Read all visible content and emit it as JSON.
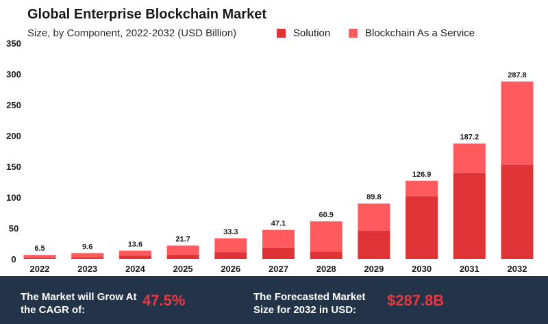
{
  "colors": {
    "solution": "#e03336",
    "baas": "#ff5a5e",
    "footer_bg": "#233348",
    "highlight": "#e8383f"
  },
  "chart_data": {
    "type": "bar",
    "stacked": true,
    "title": "Global Enterprise Blockchain Market",
    "subtitle": "Size, by Component, 2022-2032 (USD Billion)",
    "categories": [
      "2022",
      "2023",
      "2024",
      "2025",
      "2026",
      "2027",
      "2028",
      "2029",
      "2030",
      "2031",
      "2032"
    ],
    "series": [
      {
        "name": "Solution",
        "values": [
          2,
          3,
          5,
          7,
          11,
          18,
          12,
          46,
          102,
          139,
          153
        ]
      },
      {
        "name": "Blockchain As a Service",
        "values": [
          4.5,
          6.6,
          8.6,
          14.7,
          22.3,
          29.1,
          48.9,
          43.8,
          24.9,
          48.2,
          134.8
        ]
      }
    ],
    "totals": [
      "6.5",
      "9.6",
      "13.6",
      "21.7",
      "33.3",
      "47.1",
      "60.9",
      "89.8",
      "126.9",
      "187.2",
      "287.8"
    ],
    "yticks": [
      "0",
      "50",
      "100",
      "150",
      "200",
      "250",
      "300",
      "350"
    ],
    "ylim": [
      0,
      350
    ],
    "grid": false,
    "legend_position": "top-right"
  },
  "footer": {
    "cagr_label": "The Market will Grow At the CAGR of:",
    "cagr_value": "47.5%",
    "forecast_label": "The Forecasted Market Size for 2032 in USD:",
    "forecast_value": "$287.8B"
  }
}
